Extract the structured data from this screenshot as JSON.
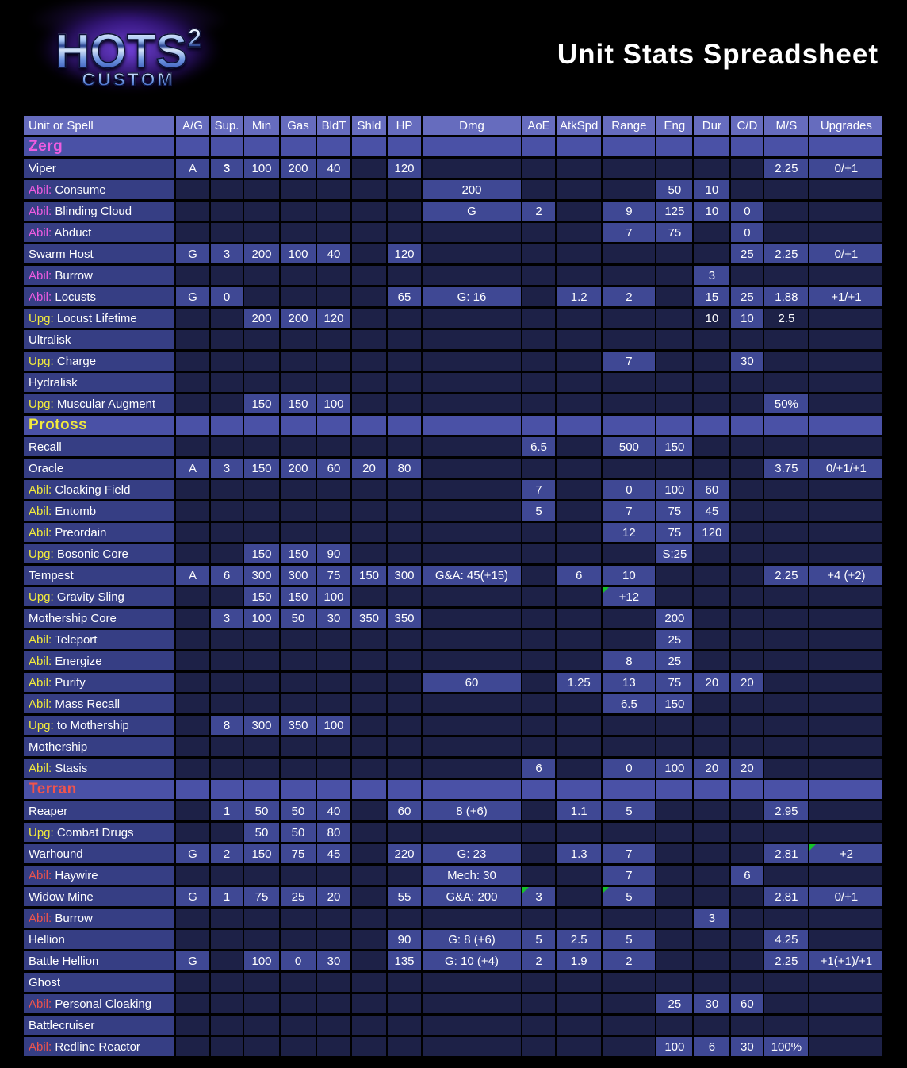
{
  "page": {
    "title": "Unit Stats Spreadsheet"
  },
  "logo": {
    "main": "HOTS",
    "sup": "2",
    "sub": "CUSTOM"
  },
  "colors": {
    "zerg": "#ee5ce0",
    "protoss": "#f2ea3c",
    "terran": "#f0544c",
    "upg": "#f2ea3c",
    "note_marker": "#15c32b"
  },
  "table": {
    "columns": [
      {
        "key": "label",
        "label": "Unit or Spell"
      },
      {
        "key": "ag",
        "label": "A/G"
      },
      {
        "key": "sup",
        "label": "Sup."
      },
      {
        "key": "min",
        "label": "Min"
      },
      {
        "key": "gas",
        "label": "Gas"
      },
      {
        "key": "bldt",
        "label": "BldT"
      },
      {
        "key": "shld",
        "label": "Shld"
      },
      {
        "key": "hp",
        "label": "HP"
      },
      {
        "key": "dmg",
        "label": "Dmg"
      },
      {
        "key": "aoe",
        "label": "AoE"
      },
      {
        "key": "atkspd",
        "label": "AtkSpd"
      },
      {
        "key": "range",
        "label": "Range"
      },
      {
        "key": "eng",
        "label": "Eng"
      },
      {
        "key": "dur",
        "label": "Dur"
      },
      {
        "key": "cd",
        "label": "C/D"
      },
      {
        "key": "ms",
        "label": "M/S"
      },
      {
        "key": "upg",
        "label": "Upgrades"
      }
    ],
    "rows": [
      {
        "type": "section",
        "race": "zerg",
        "label": "Zerg"
      },
      {
        "type": "unit",
        "label": "Viper",
        "cells": {
          "ag": "A",
          "sup": {
            "v": "3",
            "bold": true
          },
          "min": "100",
          "gas": "200",
          "bldt": "40",
          "hp": "120",
          "ms": "2.25",
          "upg": "0/+1"
        }
      },
      {
        "type": "abil",
        "race": "zerg",
        "prefix": "Abil:",
        "label": "Consume",
        "cells": {
          "dmg": "200",
          "eng": "50",
          "dur": "10"
        }
      },
      {
        "type": "abil",
        "race": "zerg",
        "prefix": "Abil:",
        "label": "Blinding Cloud",
        "cells": {
          "dmg": "G",
          "aoe": "2",
          "range": "9",
          "eng": "125",
          "dur": "10",
          "cd": "0"
        }
      },
      {
        "type": "abil",
        "race": "zerg",
        "prefix": "Abil:",
        "label": "Abduct",
        "cells": {
          "range": "7",
          "eng": "75",
          "cd": "0"
        }
      },
      {
        "type": "unit",
        "label": "Swarm Host",
        "cells": {
          "ag": "G",
          "sup": "3",
          "min": "200",
          "gas": "100",
          "bldt": "40",
          "hp": "120",
          "cd": "25",
          "ms": "2.25",
          "upg": "0/+1"
        }
      },
      {
        "type": "abil",
        "race": "zerg",
        "prefix": "Abil:",
        "label": "Burrow",
        "cells": {
          "dur": "3"
        }
      },
      {
        "type": "abil",
        "race": "zerg",
        "prefix": "Abil:",
        "label": "Locusts",
        "cells": {
          "ag": "G",
          "sup": "0",
          "hp": "65",
          "dmg": "G: 16",
          "atkspd": "1.2",
          "range": "2",
          "dur": "15",
          "cd": "25",
          "ms": "1.88",
          "upg": "+1/+1"
        }
      },
      {
        "type": "upg",
        "prefix": "Upg:",
        "label": "Locust Lifetime",
        "cells": {
          "min": "200",
          "gas": "200",
          "bldt": "120",
          "dur": {
            "v": "10",
            "dim": true
          },
          "cd": "10",
          "ms": {
            "v": "2.5",
            "dim": true
          }
        }
      },
      {
        "type": "unit",
        "label": "Ultralisk",
        "cells": {}
      },
      {
        "type": "upg",
        "prefix": "Upg:",
        "label": "Charge",
        "cells": {
          "range": "7",
          "cd": "30"
        }
      },
      {
        "type": "unit",
        "label": "Hydralisk",
        "cells": {}
      },
      {
        "type": "upg",
        "prefix": "Upg:",
        "label": "Muscular Augment",
        "cells": {
          "min": "150",
          "gas": "150",
          "bldt": "100",
          "ms": "50%"
        }
      },
      {
        "type": "section",
        "race": "protoss",
        "label": "Protoss"
      },
      {
        "type": "unit",
        "label": "Recall",
        "cells": {
          "aoe": "6.5",
          "range": "500",
          "eng": "150"
        }
      },
      {
        "type": "unit",
        "label": "Oracle",
        "cells": {
          "ag": "A",
          "sup": "3",
          "min": "150",
          "gas": "200",
          "bldt": "60",
          "shld": "20",
          "hp": "80",
          "ms": "3.75",
          "upg": "0/+1/+1"
        }
      },
      {
        "type": "abil",
        "race": "protoss",
        "prefix": "Abil:",
        "label": "Cloaking Field",
        "cells": {
          "aoe": "7",
          "range": "0",
          "eng": "100",
          "dur": "60"
        }
      },
      {
        "type": "abil",
        "race": "protoss",
        "prefix": "Abil:",
        "label": "Entomb",
        "cells": {
          "aoe": "5",
          "range": "7",
          "eng": "75",
          "dur": "45"
        }
      },
      {
        "type": "abil",
        "race": "protoss",
        "prefix": "Abil:",
        "label": "Preordain",
        "cells": {
          "range": "12",
          "eng": "75",
          "dur": "120"
        }
      },
      {
        "type": "upg",
        "prefix": "Upg:",
        "label": "Bosonic Core",
        "cells": {
          "min": "150",
          "gas": "150",
          "bldt": "90",
          "eng": "S:25"
        }
      },
      {
        "type": "unit",
        "label": "Tempest",
        "cells": {
          "ag": "A",
          "sup": "6",
          "min": "300",
          "gas": "300",
          "bldt": "75",
          "shld": "150",
          "hp": "300",
          "dmg": "G&A: 45(+15)",
          "atkspd": "6",
          "range": "10",
          "ms": "2.25",
          "upg": "+4 (+2)"
        }
      },
      {
        "type": "upg",
        "prefix": "Upg:",
        "label": "Gravity Sling",
        "cells": {
          "min": "150",
          "gas": "150",
          "bldt": "100",
          "range": {
            "v": "+12",
            "note": true
          }
        }
      },
      {
        "type": "unit",
        "label": "Mothership Core",
        "cells": {
          "sup": "3",
          "min": "100",
          "gas": "50",
          "bldt": "30",
          "shld": "350",
          "hp": "350",
          "eng": "200"
        }
      },
      {
        "type": "abil",
        "race": "protoss",
        "prefix": "Abil:",
        "label": "Teleport",
        "cells": {
          "eng": "25"
        }
      },
      {
        "type": "abil",
        "race": "protoss",
        "prefix": "Abil:",
        "label": "Energize",
        "cells": {
          "range": "8",
          "eng": "25"
        }
      },
      {
        "type": "abil",
        "race": "protoss",
        "prefix": "Abil:",
        "label": "Purify",
        "cells": {
          "dmg": "60",
          "atkspd": "1.25",
          "range": "13",
          "eng": "75",
          "dur": "20",
          "cd": "20"
        }
      },
      {
        "type": "abil",
        "race": "protoss",
        "prefix": "Abil:",
        "label": "Mass Recall",
        "cells": {
          "range": "6.5",
          "eng": "150"
        }
      },
      {
        "type": "upg",
        "prefix": "Upg:",
        "label": "to Mothership",
        "cells": {
          "sup": "8",
          "min": "300",
          "gas": "350",
          "bldt": "100"
        }
      },
      {
        "type": "unit",
        "label": "Mothership",
        "cells": {}
      },
      {
        "type": "abil",
        "race": "protoss",
        "prefix": "Abil:",
        "label": "Stasis",
        "cells": {
          "aoe": "6",
          "range": "0",
          "eng": "100",
          "dur": "20",
          "cd": "20"
        }
      },
      {
        "type": "section",
        "race": "terran",
        "label": "Terran"
      },
      {
        "type": "unit",
        "label": "Reaper",
        "cells": {
          "sup": "1",
          "min": "50",
          "gas": "50",
          "bldt": "40",
          "hp": "60",
          "dmg": "8 (+6)",
          "atkspd": "1.1",
          "range": "5",
          "ms": "2.95"
        }
      },
      {
        "type": "upg",
        "prefix": "Upg:",
        "label": "Combat Drugs",
        "cells": {
          "min": "50",
          "gas": "50",
          "bldt": "80"
        }
      },
      {
        "type": "unit",
        "label": "Warhound",
        "cells": {
          "ag": "G",
          "sup": "2",
          "min": "150",
          "gas": "75",
          "bldt": "45",
          "hp": "220",
          "dmg": "G: 23",
          "atkspd": "1.3",
          "range": "7",
          "ms": "2.81",
          "upg": {
            "v": "+2",
            "note": true
          }
        }
      },
      {
        "type": "abil",
        "race": "terran",
        "prefix": "Abil:",
        "label": "Haywire",
        "cells": {
          "dmg": "Mech: 30",
          "range": "7",
          "cd": "6"
        }
      },
      {
        "type": "unit",
        "label": "Widow Mine",
        "cells": {
          "ag": "G",
          "sup": "1",
          "min": "75",
          "gas": "25",
          "bldt": "20",
          "hp": "55",
          "dmg": "G&A: 200",
          "aoe": {
            "v": "3",
            "note": true
          },
          "range": {
            "v": "5",
            "note": true
          },
          "ms": "2.81",
          "upg": "0/+1"
        }
      },
      {
        "type": "abil",
        "race": "terran",
        "prefix": "Abil:",
        "label": "Burrow",
        "cells": {
          "dur": "3"
        }
      },
      {
        "type": "unit",
        "label": "Hellion",
        "cells": {
          "hp": "90",
          "dmg": "G: 8 (+6)",
          "aoe": "5",
          "atkspd": "2.5",
          "range": "5",
          "ms": "4.25"
        }
      },
      {
        "type": "unit",
        "label": "Battle Hellion",
        "cells": {
          "ag": "G",
          "min": "100",
          "gas": "0",
          "bldt": "30",
          "hp": "135",
          "dmg": "G: 10 (+4)",
          "aoe": "2",
          "atkspd": "1.9",
          "range": "2",
          "ms": "2.25",
          "upg": "+1(+1)/+1"
        }
      },
      {
        "type": "unit",
        "label": "Ghost",
        "cells": {}
      },
      {
        "type": "abil",
        "race": "terran",
        "prefix": "Abil:",
        "label": "Personal Cloaking",
        "cells": {
          "eng": "25",
          "dur": "30",
          "cd": "60"
        }
      },
      {
        "type": "unit",
        "label": "Battlecruiser",
        "cells": {}
      },
      {
        "type": "abil",
        "race": "terran",
        "prefix": "Abil:",
        "label": "Redline Reactor",
        "cells": {
          "eng": "100",
          "dur": "6",
          "cd": "30",
          "ms": "100%"
        }
      }
    ]
  }
}
